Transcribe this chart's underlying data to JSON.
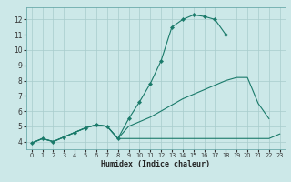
{
  "xlabel": "Humidex (Indice chaleur)",
  "bg_color": "#cce8e8",
  "grid_color": "#a8cccc",
  "line_color": "#1a7a6a",
  "xlim": [
    -0.5,
    23.5
  ],
  "ylim": [
    3.5,
    12.8
  ],
  "yticks": [
    4,
    5,
    6,
    7,
    8,
    9,
    10,
    11,
    12
  ],
  "xticks": [
    0,
    1,
    2,
    3,
    4,
    5,
    6,
    7,
    8,
    9,
    10,
    11,
    12,
    13,
    14,
    15,
    16,
    17,
    18,
    19,
    20,
    21,
    22,
    23
  ],
  "c1x": [
    0,
    1,
    2,
    3,
    4,
    5,
    6,
    7,
    8,
    9,
    10,
    11,
    12,
    13,
    14,
    15,
    16,
    17,
    18
  ],
  "c1y": [
    3.9,
    4.2,
    4.0,
    4.3,
    4.6,
    4.9,
    5.1,
    5.0,
    4.2,
    5.5,
    6.6,
    7.8,
    9.3,
    11.5,
    12.0,
    12.3,
    12.2,
    12.0,
    11.0
  ],
  "c2x": [
    0,
    1,
    2,
    3,
    4,
    5,
    6,
    7,
    8,
    9,
    10,
    11,
    12,
    13,
    14,
    15,
    16,
    17,
    18,
    19,
    20,
    21,
    22
  ],
  "c2y": [
    3.9,
    4.2,
    4.0,
    4.3,
    4.6,
    4.9,
    5.1,
    5.0,
    4.2,
    5.0,
    5.3,
    5.6,
    6.0,
    6.4,
    6.8,
    7.1,
    7.4,
    7.7,
    8.0,
    8.2,
    8.2,
    6.5,
    5.5
  ],
  "c3x": [
    0,
    1,
    2,
    3,
    4,
    5,
    6,
    7,
    8,
    9,
    10,
    11,
    12,
    13,
    14,
    15,
    16,
    17,
    18,
    19,
    20,
    21,
    22,
    23
  ],
  "c3y": [
    3.9,
    4.2,
    4.0,
    4.3,
    4.6,
    4.9,
    5.1,
    5.0,
    4.2,
    4.2,
    4.2,
    4.2,
    4.2,
    4.2,
    4.2,
    4.2,
    4.2,
    4.2,
    4.2,
    4.2,
    4.2,
    4.2,
    4.2,
    4.5
  ]
}
